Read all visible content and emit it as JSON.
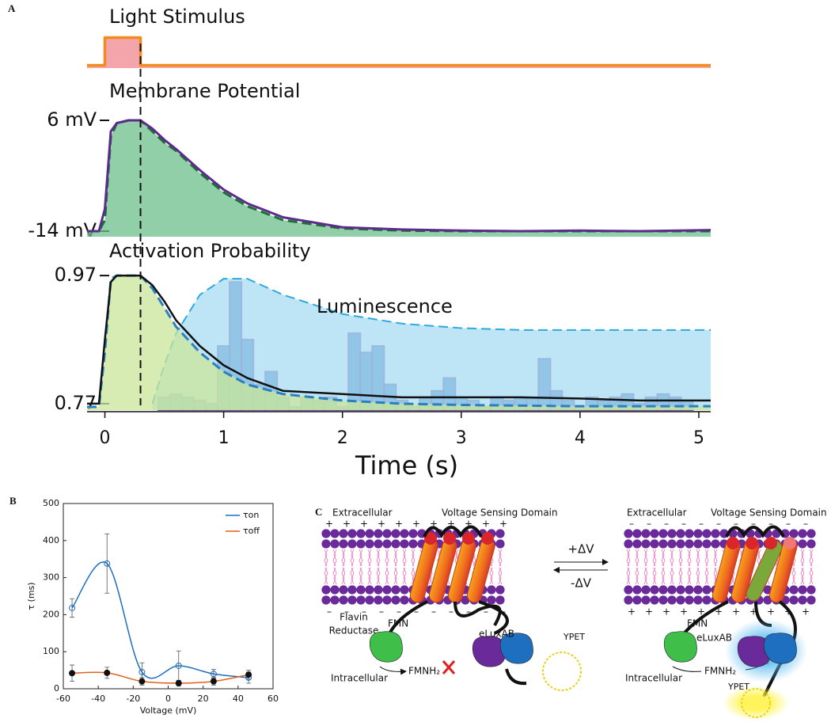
{
  "chart_data": [
    {
      "type": "line",
      "panel_label": "A",
      "xlabel": "Time (s)",
      "xlim": [
        -0.15,
        5.1
      ],
      "xticks": [
        0,
        1,
        2,
        3,
        4,
        5
      ],
      "vline": 0.3,
      "rows": [
        {
          "title": "Light Stimulus",
          "ylim": [
            -0.1,
            1.1
          ],
          "yticks": [],
          "series": [
            {
              "color": "#f28a1c",
              "fill": "#f0858f",
              "width": 3.5,
              "x": [
                -0.15,
                0,
                0,
                0.3,
                0.3,
                5.1
              ],
              "values": [
                0,
                0,
                1,
                1,
                0,
                0
              ]
            }
          ]
        },
        {
          "title": "Membrane Potential",
          "ylim": [
            -15,
            8
          ],
          "yticks": [
            {
              "value": 6,
              "label": "6 mV"
            },
            {
              "value": -14,
              "label": "-14 mV"
            }
          ],
          "series": [
            {
              "color": "#1e6e36",
              "fill": "#6cbf8c",
              "dashed": true,
              "width": 3,
              "x": [
                -0.15,
                -0.05,
                0,
                0.05,
                0.1,
                0.2,
                0.3,
                0.4,
                0.5,
                0.6,
                0.8,
                1.0,
                1.2,
                1.5,
                2,
                2.5,
                3,
                3.5,
                4,
                4.5,
                5.1
              ],
              "values": [
                -14,
                -14,
                -12,
                3,
                5.5,
                6,
                6,
                4,
                2,
                0.5,
                -3.5,
                -7,
                -9.5,
                -12,
                -13.5,
                -13.9,
                -14,
                -14,
                -14,
                -14,
                -14
              ]
            },
            {
              "color": "#5b2c8c",
              "width": 3,
              "x": [
                -0.15,
                -0.05,
                0,
                0.05,
                0.1,
                0.2,
                0.3,
                0.4,
                0.5,
                0.6,
                0.8,
                1.0,
                1.2,
                1.5,
                2,
                2.5,
                3,
                3.5,
                4,
                4.5,
                5.1
              ],
              "values": [
                -14,
                -14,
                -10,
                4,
                5.5,
                6,
                6,
                4.5,
                2.5,
                0.8,
                -3,
                -6.5,
                -9,
                -11.5,
                -13.3,
                -13.7,
                -13.9,
                -14,
                -13.9,
                -14,
                -13.8
              ]
            }
          ]
        },
        {
          "title": "Activation Probability",
          "annotation": "Luminescence",
          "ylim": [
            0.76,
            0.98
          ],
          "yticks": [
            0.97,
            0.77
          ],
          "series": [
            {
              "color": "#2fa8de",
              "fill": "#a8dcf2",
              "dashed": true,
              "width": 2,
              "x": [
                -0.15,
                -0.05,
                0,
                0.05,
                0.1,
                0.2,
                0.3,
                0.4,
                0.5,
                0.6,
                0.8,
                1.0,
                1.2,
                1.5,
                2,
                2.5,
                3,
                3.5,
                4,
                4.5,
                5.1
              ],
              "values": [
                null,
                null,
                null,
                null,
                null,
                null,
                null,
                0.77,
                0.83,
                0.88,
                0.94,
                0.965,
                0.965,
                0.94,
                0.91,
                0.895,
                0.888,
                0.885,
                0.885,
                0.885,
                0.885
              ]
            },
            {
              "color": "#2a7fc0",
              "fill": "#c9e59a",
              "dashed": true,
              "width": 3,
              "x": [
                -0.15,
                -0.05,
                0,
                0.05,
                0.1,
                0.2,
                0.3,
                0.4,
                0.5,
                0.6,
                0.8,
                1.0,
                1.2,
                1.5,
                2,
                2.5,
                3,
                3.5,
                4,
                4.5,
                5.1
              ],
              "values": [
                0.765,
                0.765,
                0.85,
                0.965,
                0.97,
                0.97,
                0.97,
                0.95,
                0.92,
                0.89,
                0.85,
                0.82,
                0.8,
                0.785,
                0.775,
                0.77,
                0.768,
                0.767,
                0.766,
                0.766,
                0.766
              ]
            },
            {
              "color": "#111111",
              "width": 2.5,
              "x": [
                -0.15,
                -0.05,
                0,
                0.05,
                0.1,
                0.2,
                0.3,
                0.4,
                0.5,
                0.6,
                0.8,
                1.0,
                1.2,
                1.5,
                2,
                2.5,
                3,
                3.5,
                4,
                4.5,
                5.1
              ],
              "values": [
                0.77,
                0.77,
                0.87,
                0.96,
                0.97,
                0.97,
                0.97,
                0.955,
                0.93,
                0.9,
                0.86,
                0.83,
                0.81,
                0.79,
                0.785,
                0.78,
                0.78,
                0.78,
                0.778,
                0.775,
                0.775
              ]
            }
          ],
          "histogram": {
            "color": "#3a78c0",
            "edge": "#6a3fa0",
            "bins": [
              0.45,
              0.55,
              0.65,
              0.75,
              0.85,
              0.95,
              1.05,
              1.15,
              1.25,
              1.35,
              1.45,
              1.55,
              1.65,
              1.75,
              1.85,
              1.95,
              2.05,
              2.15,
              2.25,
              2.35,
              2.45,
              2.55,
              2.65,
              2.75,
              2.85,
              2.95,
              3.05,
              3.15,
              3.25,
              3.35,
              3.45,
              3.55,
              3.65,
              3.75,
              3.85,
              3.95,
              4.05,
              4.15,
              4.25,
              4.35,
              4.45,
              4.55,
              4.65,
              4.75,
              4.85,
              4.95
            ],
            "values": [
              0.78,
              0.785,
              0.78,
              0.775,
              0.77,
              0.86,
              0.96,
              0.87,
              0.8,
              0.82,
              0.78,
              0.765,
              0.78,
              0.775,
              0.78,
              0.765,
              0.88,
              0.85,
              0.86,
              0.8,
              0.775,
              0.765,
              0.78,
              0.79,
              0.81,
              0.78,
              0.775,
              0.765,
              0.78,
              0.775,
              0.78,
              0.78,
              0.84,
              0.79,
              0.775,
              0.765,
              0.78,
              0.775,
              0.78,
              0.785,
              0.77,
              0.78,
              0.785,
              0.78,
              0.775
            ]
          }
        }
      ]
    },
    {
      "type": "line",
      "panel_label": "B",
      "xlabel": "Voltage (mV)",
      "ylabel": "τ (ms)",
      "x": [
        -55,
        -35,
        -15,
        6,
        26,
        46
      ],
      "xlim": [
        -60,
        60
      ],
      "xticks": [
        -60,
        -40,
        -20,
        0,
        20,
        40,
        60
      ],
      "ylim": [
        0,
        500
      ],
      "yticks": [
        0,
        100,
        200,
        300,
        400,
        500
      ],
      "legend": "upper right",
      "series": [
        {
          "name": "τon",
          "color": "#1f6fc0",
          "marker": "open",
          "values": [
            218,
            338,
            45,
            62,
            40,
            30
          ],
          "errors": [
            25,
            80,
            25,
            40,
            12,
            15
          ]
        },
        {
          "name": "τoff",
          "color": "#e0621c",
          "marker": "filled",
          "values": [
            42,
            43,
            20,
            15,
            20,
            38
          ],
          "errors": [
            22,
            15,
            10,
            8,
            10,
            12
          ]
        }
      ]
    }
  ],
  "diagram": {
    "label": "C",
    "plus": "+",
    "minus": "–",
    "forward": "+ΔV",
    "backward": "-ΔV",
    "left": {
      "extracellular": "Extracellular",
      "vsd": "Voltage Sensing Domain",
      "reductase": [
        "Flavin",
        "Reductase"
      ],
      "fmn": "FMN",
      "fmnh2": "FMNH₂",
      "intracellular": "Intracellular",
      "luxab": "eLuxAB",
      "ypet": "YPET"
    },
    "right": {
      "extracellular": "Extracellular",
      "vsd": "Voltage Sensing Domain",
      "fmn": "FMN",
      "fmnh2": "FMNH₂",
      "intracellular": "Intracellular",
      "luxab": "eLuxAB",
      "ypet": "YPET"
    }
  }
}
